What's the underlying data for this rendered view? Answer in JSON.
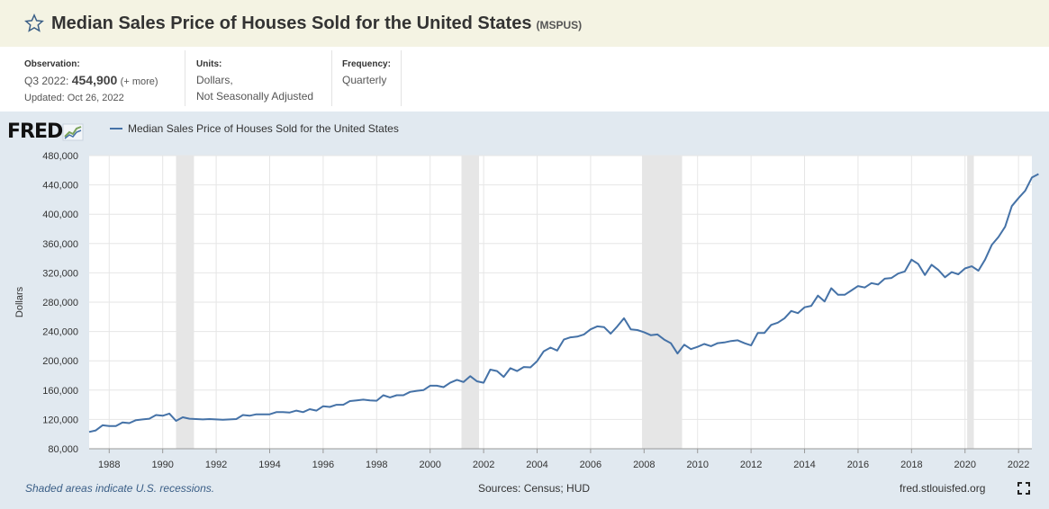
{
  "header": {
    "title": "Median Sales Price of Houses Sold for the United States",
    "series_code": "(MSPUS)",
    "star_icon": "star-icon"
  },
  "meta": {
    "observation_label": "Observation:",
    "observation_period": "Q3 2022:",
    "observation_value": "454,900",
    "observation_more": "(+ more)",
    "updated": "Updated: Oct 26, 2022",
    "units_label": "Units:",
    "units_line1": "Dollars,",
    "units_line2": "Not Seasonally Adjusted",
    "frequency_label": "Frequency:",
    "frequency_value": "Quarterly"
  },
  "logo": {
    "text": "FRED",
    "icon": "fred-chart-icon"
  },
  "footer": {
    "recession_note": "Shaded areas indicate U.S. recessions.",
    "sources": "Sources: Census; HUD",
    "site": "fred.stlouisfed.org",
    "fullscreen_icon": "fullscreen-icon"
  },
  "chart_data": {
    "type": "line",
    "title": "",
    "ylabel": "Dollars",
    "xlabel": "",
    "xlim": [
      1987.25,
      2022.5
    ],
    "ylim": [
      80000,
      480000
    ],
    "yticks": [
      80000,
      120000,
      160000,
      200000,
      240000,
      280000,
      320000,
      360000,
      400000,
      440000,
      480000
    ],
    "ytick_labels": [
      "80,000",
      "120,000",
      "160,000",
      "200,000",
      "240,000",
      "280,000",
      "320,000",
      "360,000",
      "400,000",
      "440,000",
      "480,000"
    ],
    "xticks": [
      1988,
      1990,
      1992,
      1994,
      1996,
      1998,
      2000,
      2002,
      2004,
      2006,
      2008,
      2010,
      2012,
      2014,
      2016,
      2018,
      2020,
      2022
    ],
    "xtick_labels": [
      "1988",
      "1990",
      "1992",
      "1994",
      "1996",
      "1998",
      "2000",
      "2002",
      "2004",
      "2006",
      "2008",
      "2010",
      "2012",
      "2014",
      "2016",
      "2018",
      "2020",
      "2022"
    ],
    "grid": true,
    "legend_position": "top-left",
    "series": [
      {
        "name": "Median Sales Price of Houses Sold for the United States",
        "color": "#4572a7",
        "start": "1987-Q2",
        "values": [
          103000,
          105000,
          112000,
          111000,
          111000,
          116000,
          115000,
          119000,
          120000,
          121000,
          126000,
          125000,
          128000,
          118000,
          123000,
          121000,
          120500,
          120000,
          120500,
          120000,
          119500,
          120000,
          120500,
          126000,
          125000,
          127000,
          127000,
          127000,
          130000,
          130000,
          129500,
          132000,
          130000,
          134000,
          132000,
          138000,
          137000,
          140000,
          140000,
          145000,
          146000,
          147000,
          146000,
          145500,
          153000,
          150000,
          153000,
          153000,
          157500,
          159000,
          160000,
          166000,
          166000,
          164000,
          170000,
          174000,
          171000,
          179000,
          172000,
          170000,
          188000,
          186000,
          178000,
          190000,
          186000,
          191500,
          191000,
          199500,
          213000,
          218000,
          214000,
          229000,
          232000,
          233000,
          236000,
          243000,
          247000,
          246000,
          237000,
          247000,
          258000,
          243000,
          242000,
          239000,
          235000,
          236000,
          229000,
          224000,
          210000,
          222000,
          216000,
          219000,
          223000,
          220000,
          224000,
          225000,
          227000,
          228000,
          224000,
          221000,
          238000,
          238000,
          249000,
          252000,
          258000,
          268000,
          265000,
          273000,
          275000,
          289000,
          281000,
          299000,
          290000,
          290000,
          296000,
          302000,
          300000,
          306000,
          304000,
          312000,
          313000,
          319000,
          322000,
          338000,
          332000,
          317000,
          331000,
          324000,
          314000,
          321000,
          318000,
          326000,
          329000,
          323000,
          338000,
          358000,
          369000,
          383000,
          411000,
          422000,
          432000,
          450000,
          454900
        ]
      }
    ],
    "recessions": [
      [
        1990.5,
        1991.17
      ],
      [
        2001.17,
        2001.83
      ],
      [
        2007.92,
        2009.42
      ],
      [
        2020.08,
        2020.33
      ]
    ]
  }
}
